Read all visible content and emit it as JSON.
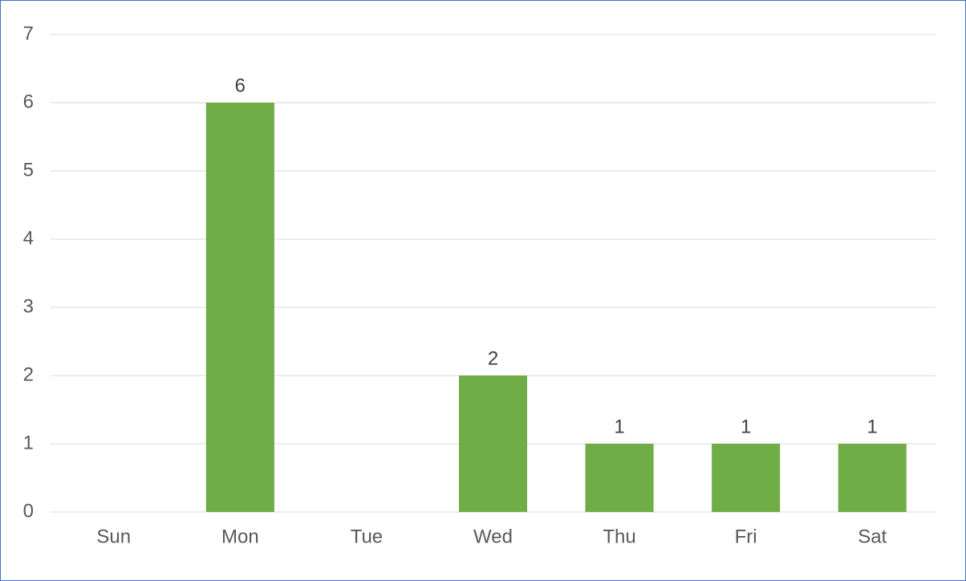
{
  "chart_data": {
    "type": "bar",
    "categories": [
      "Sun",
      "Mon",
      "Tue",
      "Wed",
      "Thu",
      "Fri",
      "Sat"
    ],
    "values": [
      null,
      6,
      null,
      2,
      1,
      1,
      1
    ],
    "color": "#70ad47",
    "ylim": [
      0,
      7
    ],
    "yticks": [
      0,
      1,
      2,
      3,
      4,
      5,
      6,
      7
    ],
    "grid": true,
    "data_labels": true
  }
}
